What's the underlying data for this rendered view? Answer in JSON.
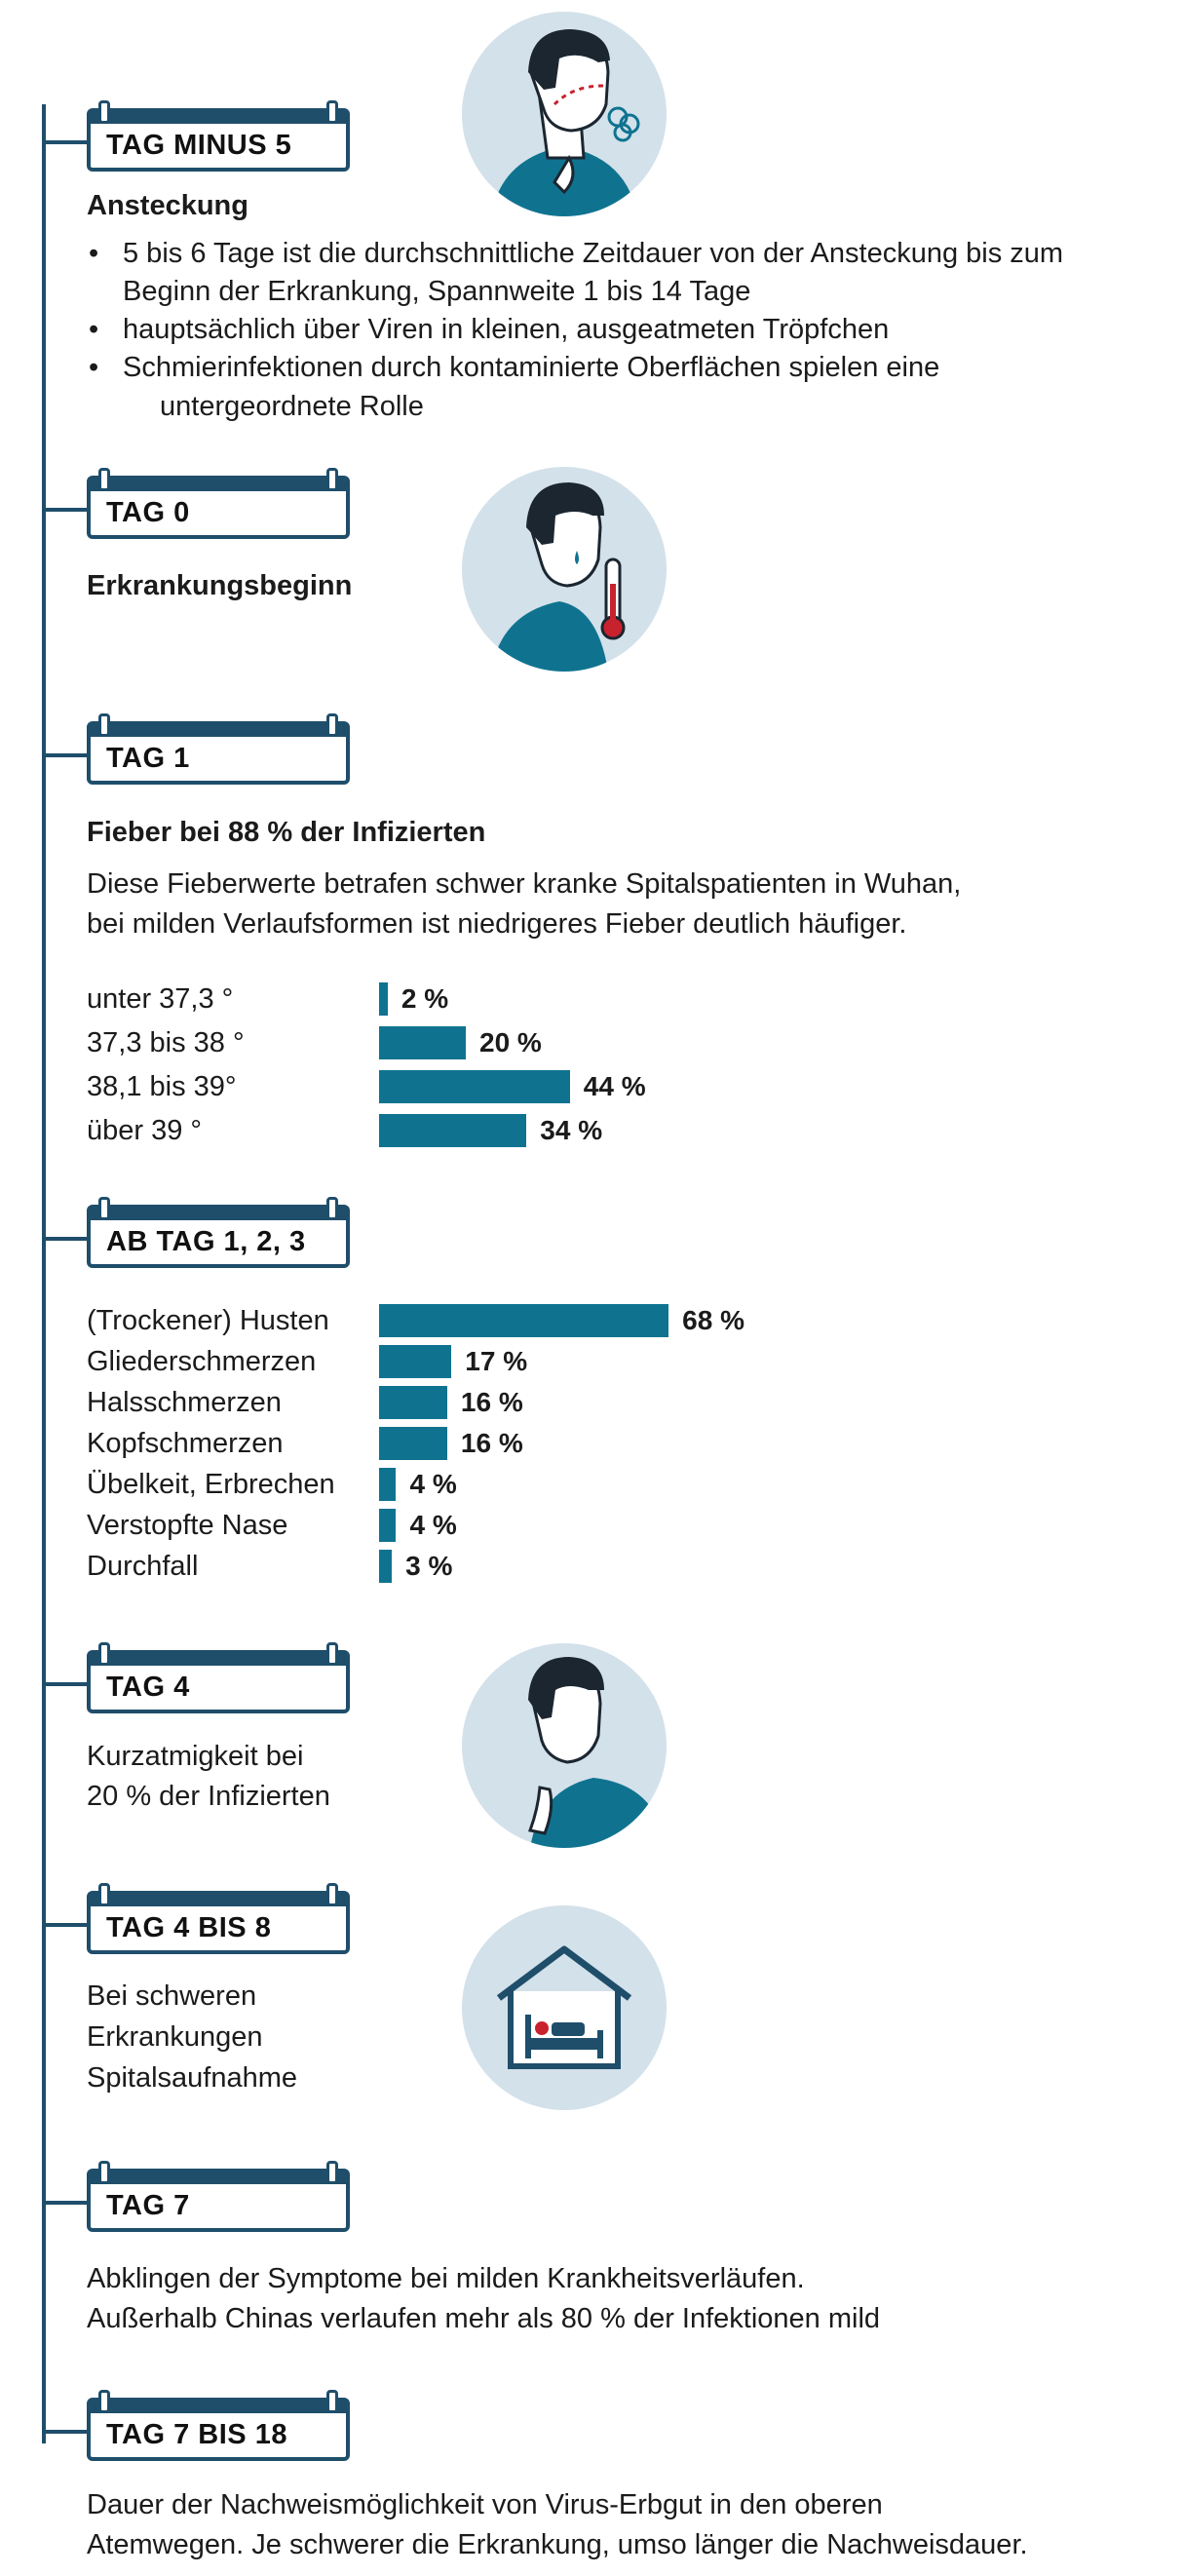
{
  "sections": {
    "minus5": {
      "tag": "TAG MINUS 5",
      "heading": "Ansteckung",
      "bullets": [
        "5 bis 6 Tage ist die durchschnittliche Zeitdauer von der Ansteckung bis zum Beginn der Erkrankung, Spannweite 1 bis 14 Tage",
        "hauptsächlich über Viren in kleinen, ausgeatmeten Tröpfchen",
        "Schmierinfektionen durch kontaminierte Oberflächen spielen eine"
      ],
      "bullet3_cont": "untergeordnete Rolle",
      "icon": "coughing-person-icon"
    },
    "day0": {
      "tag": "TAG 0",
      "heading": "Erkrankungsbeginn",
      "icon": "fever-thermometer-icon"
    },
    "day1": {
      "tag": "TAG 1",
      "heading": "Fieber bei 88 % der Infizierten",
      "text_line1": "Diese Fieberwerte betrafen schwer kranke Spitalspatienten in Wuhan,",
      "text_line2": "bei milden Verlaufsformen ist niedrigeres Fieber deutlich häufiger."
    },
    "day123": {
      "tag": "AB TAG  1, 2, 3"
    },
    "day4": {
      "tag": "TAG 4",
      "text_line1": "Kurzatmigkeit bei",
      "text_line2": "20 % der Infizierten",
      "icon": "shortness-of-breath-icon"
    },
    "day4to8": {
      "tag": "TAG 4 BIS 8",
      "text_line1": "Bei schweren",
      "text_line2": "Erkrankungen",
      "text_line3": "Spitalsaufnahme",
      "icon": "hospital-bed-icon"
    },
    "day7": {
      "tag": "TAG 7",
      "text_line1": "Abklingen der Symptome bei milden Krankheitsverläufen.",
      "text_line2": "Außerhalb Chinas verlaufen mehr als 80 % der Infektionen mild"
    },
    "day7to18": {
      "tag": "TAG 7 BIS 18",
      "text_line1": "Dauer der Nachweismöglichkeit von Virus-Erbgut in den oberen",
      "text_line2": "Atemwegen.  Je schwerer die Erkrankung, umso länger die Nachweisdauer."
    }
  },
  "chart_data": [
    {
      "type": "bar",
      "title": "Fieber bei 88 % der Infizierten",
      "categories": [
        "unter 37,3 °",
        "37,3 bis 38 °",
        "38,1 bis 39°",
        "über 39 °"
      ],
      "values": [
        2,
        20,
        44,
        34
      ],
      "value_labels": [
        "2 %",
        "20 %",
        "44 %",
        "34 %"
      ],
      "unit": "%"
    },
    {
      "type": "bar",
      "title": "AB TAG  1, 2, 3",
      "categories": [
        "(Trockener) Husten",
        "Gliederschmerzen",
        "Halsschmerzen",
        "Kopfschmerzen",
        "Übelkeit, Erbrechen",
        "Verstopfte Nase",
        "Durchfall"
      ],
      "values": [
        68,
        17,
        16,
        16,
        4,
        4,
        3
      ],
      "value_labels": [
        "68 %",
        "17 %",
        "16 %",
        "16 %",
        "4 %",
        "4 %",
        "3 %"
      ],
      "unit": "%"
    }
  ],
  "colors": {
    "bar": "#0f7390",
    "line": "#1f4e6b",
    "circle": "#d3e1ea",
    "shirt": "#0f7390",
    "skin": "#ffffff",
    "hair": "#1b2630",
    "red": "#c8222e"
  }
}
